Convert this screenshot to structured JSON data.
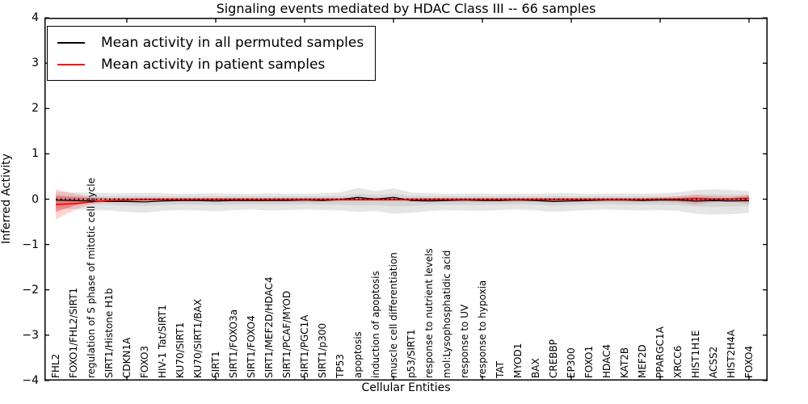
{
  "title": "Signaling events mediated by HDAC Class III -- 66 samples",
  "axes": {
    "xlabel": "Cellular Entities",
    "ylabel": "Inferred Activity",
    "yticklabels": [
      "4",
      "3",
      "2",
      "1",
      "0",
      "−1",
      "−2",
      "−3",
      "−4"
    ]
  },
  "legend": {
    "entries": [
      {
        "label": "Mean activity in all permuted samples",
        "color": "#000000"
      },
      {
        "label": "Mean activity in patient samples",
        "color": "#ff0000"
      }
    ]
  },
  "chart_data": {
    "type": "line",
    "title": "Signaling events mediated by HDAC Class III -- 66 samples",
    "xlabel": "Cellular Entities",
    "ylabel": "Inferred Activity",
    "ylim": [
      -4,
      4
    ],
    "yticks": [
      -4,
      -3,
      -2,
      -1,
      0,
      1,
      2,
      3,
      4
    ],
    "xticks_every": 5,
    "grid": false,
    "legend_position": "upper left",
    "zero_line": {
      "value": 0,
      "style": "dotted",
      "color": "#000000"
    },
    "categories": [
      "FHL2",
      "FOXO1/FHL2/SIRT1",
      "regulation of S phase of mitotic cell cycle",
      "SIRT1/Histone H1b",
      "CDKN1A",
      "FOXO3",
      "HIV-1 Tat/SIRT1",
      "KU70/SIRT1",
      "KU70/SIRT1/BAX",
      "SIRT1",
      "SIRT1/FOXO3a",
      "SIRT1/FOXO4",
      "SIRT1/MEF2D/HDAC4",
      "SIRT1/PCAF/MYOD",
      "SIRT1/PGC1A",
      "SIRT1/p300",
      "TP53",
      "apoptosis",
      "induction of apoptosis",
      "muscle cell differentiation",
      "p53/SIRT1",
      "response to nutrient levels",
      "mol:Lysophosphatidic acid",
      "response to UV",
      "response to hypoxia",
      "TAT",
      "MYOD1",
      "BAX",
      "CREBBP",
      "EP300",
      "FOXO1",
      "HDAC4",
      "KAT2B",
      "MEF2D",
      "PPARGC1A",
      "XRCC6",
      "HIST1H1E",
      "ACSS2",
      "HIST2H4A",
      "FOXO4"
    ],
    "series": [
      {
        "name": "Mean activity in all permuted samples",
        "color": "#000000",
        "width": 1.3,
        "values": [
          -0.02,
          -0.03,
          -0.04,
          -0.05,
          -0.05,
          -0.06,
          -0.04,
          -0.03,
          -0.03,
          -0.04,
          -0.03,
          -0.03,
          -0.03,
          -0.03,
          -0.02,
          -0.03,
          -0.01,
          0.04,
          0.0,
          0.04,
          -0.03,
          -0.04,
          -0.03,
          -0.02,
          -0.03,
          -0.03,
          -0.02,
          -0.03,
          -0.05,
          -0.04,
          -0.03,
          -0.02,
          -0.02,
          -0.03,
          -0.02,
          -0.02,
          -0.04,
          -0.03,
          -0.04,
          -0.03
        ]
      },
      {
        "name": "Mean activity in patient samples",
        "color": "#ff0000",
        "width": 1.6,
        "values": [
          -0.12,
          -0.1,
          -0.06,
          -0.03,
          -0.02,
          -0.01,
          -0.01,
          -0.01,
          -0.01,
          -0.01,
          -0.01,
          -0.01,
          -0.01,
          -0.01,
          -0.01,
          -0.01,
          -0.01,
          -0.01,
          -0.01,
          -0.01,
          -0.01,
          -0.01,
          -0.01,
          -0.01,
          -0.01,
          -0.01,
          -0.01,
          -0.01,
          -0.01,
          -0.01,
          -0.01,
          -0.01,
          -0.01,
          -0.01,
          0.0,
          0.0,
          0.01,
          0.0,
          0.0,
          0.02
        ]
      }
    ],
    "bands": [
      {
        "name": "permuted-confidence-outer",
        "fill": "rgba(0,0,0,0.10)",
        "upper": [
          0.15,
          0.15,
          0.14,
          0.13,
          0.13,
          0.14,
          0.13,
          0.12,
          0.12,
          0.13,
          0.12,
          0.12,
          0.13,
          0.12,
          0.12,
          0.13,
          0.15,
          0.25,
          0.18,
          0.24,
          0.15,
          0.13,
          0.12,
          0.12,
          0.13,
          0.12,
          0.12,
          0.12,
          0.13,
          0.13,
          0.12,
          0.12,
          0.13,
          0.12,
          0.13,
          0.15,
          0.2,
          0.22,
          0.2,
          0.18
        ],
        "lower": [
          -0.2,
          -0.22,
          -0.24,
          -0.25,
          -0.28,
          -0.3,
          -0.26,
          -0.24,
          -0.25,
          -0.27,
          -0.24,
          -0.23,
          -0.25,
          -0.24,
          -0.23,
          -0.24,
          -0.25,
          -0.28,
          -0.26,
          -0.32,
          -0.3,
          -0.26,
          -0.24,
          -0.25,
          -0.26,
          -0.24,
          -0.23,
          -0.25,
          -0.28,
          -0.26,
          -0.24,
          -0.23,
          -0.24,
          -0.25,
          -0.24,
          -0.26,
          -0.32,
          -0.34,
          -0.33,
          -0.3
        ]
      },
      {
        "name": "permuted-confidence-inner",
        "fill": "rgba(0,0,0,0.07)",
        "upper": [
          0.07,
          0.07,
          0.07,
          0.06,
          0.06,
          0.07,
          0.06,
          0.06,
          0.06,
          0.06,
          0.06,
          0.06,
          0.06,
          0.06,
          0.06,
          0.06,
          0.07,
          0.12,
          0.09,
          0.12,
          0.07,
          0.06,
          0.06,
          0.06,
          0.06,
          0.06,
          0.06,
          0.06,
          0.06,
          0.06,
          0.06,
          0.06,
          0.06,
          0.06,
          0.06,
          0.07,
          0.1,
          0.11,
          0.1,
          0.09
        ],
        "lower": [
          -0.1,
          -0.11,
          -0.12,
          -0.12,
          -0.14,
          -0.15,
          -0.13,
          -0.12,
          -0.12,
          -0.13,
          -0.12,
          -0.11,
          -0.12,
          -0.12,
          -0.11,
          -0.12,
          -0.12,
          -0.14,
          -0.13,
          -0.16,
          -0.15,
          -0.13,
          -0.12,
          -0.12,
          -0.13,
          -0.12,
          -0.11,
          -0.12,
          -0.14,
          -0.13,
          -0.12,
          -0.11,
          -0.12,
          -0.12,
          -0.12,
          -0.13,
          -0.16,
          -0.17,
          -0.16,
          -0.15
        ]
      },
      {
        "name": "patient-confidence-outer",
        "fill": "rgba(255,60,60,0.22)",
        "upper": [
          0.22,
          0.12,
          0.05,
          0.03,
          0.03,
          0.03,
          0.03,
          0.03,
          0.03,
          0.03,
          0.03,
          0.03,
          0.03,
          0.03,
          0.03,
          0.03,
          0.03,
          0.03,
          0.03,
          0.03,
          0.03,
          0.03,
          0.03,
          0.03,
          0.03,
          0.03,
          0.03,
          0.03,
          0.03,
          0.03,
          0.03,
          0.03,
          0.03,
          0.03,
          0.04,
          0.06,
          0.1,
          0.06,
          0.05,
          0.1
        ],
        "lower": [
          -0.45,
          -0.25,
          -0.1,
          -0.05,
          -0.05,
          -0.05,
          -0.05,
          -0.05,
          -0.05,
          -0.05,
          -0.05,
          -0.05,
          -0.05,
          -0.05,
          -0.05,
          -0.05,
          -0.05,
          -0.05,
          -0.05,
          -0.05,
          -0.05,
          -0.05,
          -0.05,
          -0.05,
          -0.05,
          -0.05,
          -0.05,
          -0.05,
          -0.05,
          -0.05,
          -0.05,
          -0.05,
          -0.05,
          -0.05,
          -0.05,
          -0.07,
          -0.12,
          -0.07,
          -0.06,
          -0.1
        ]
      },
      {
        "name": "patient-confidence-inner",
        "fill": "rgba(230,30,30,0.35)",
        "upper": [
          0.08,
          0.05,
          0.02,
          0.02,
          0.02,
          0.02,
          0.02,
          0.02,
          0.02,
          0.02,
          0.02,
          0.02,
          0.02,
          0.02,
          0.02,
          0.02,
          0.02,
          0.02,
          0.02,
          0.02,
          0.02,
          0.02,
          0.02,
          0.02,
          0.02,
          0.02,
          0.02,
          0.02,
          0.02,
          0.02,
          0.02,
          0.02,
          0.02,
          0.02,
          0.02,
          0.03,
          0.05,
          0.03,
          0.03,
          0.06
        ],
        "lower": [
          -0.28,
          -0.15,
          -0.06,
          -0.03,
          -0.03,
          -0.03,
          -0.03,
          -0.03,
          -0.03,
          -0.03,
          -0.03,
          -0.03,
          -0.03,
          -0.03,
          -0.03,
          -0.03,
          -0.03,
          -0.03,
          -0.03,
          -0.03,
          -0.03,
          -0.03,
          -0.03,
          -0.03,
          -0.03,
          -0.03,
          -0.03,
          -0.03,
          -0.03,
          -0.03,
          -0.03,
          -0.03,
          -0.03,
          -0.03,
          -0.03,
          -0.04,
          -0.07,
          -0.04,
          -0.04,
          -0.06
        ]
      }
    ]
  }
}
